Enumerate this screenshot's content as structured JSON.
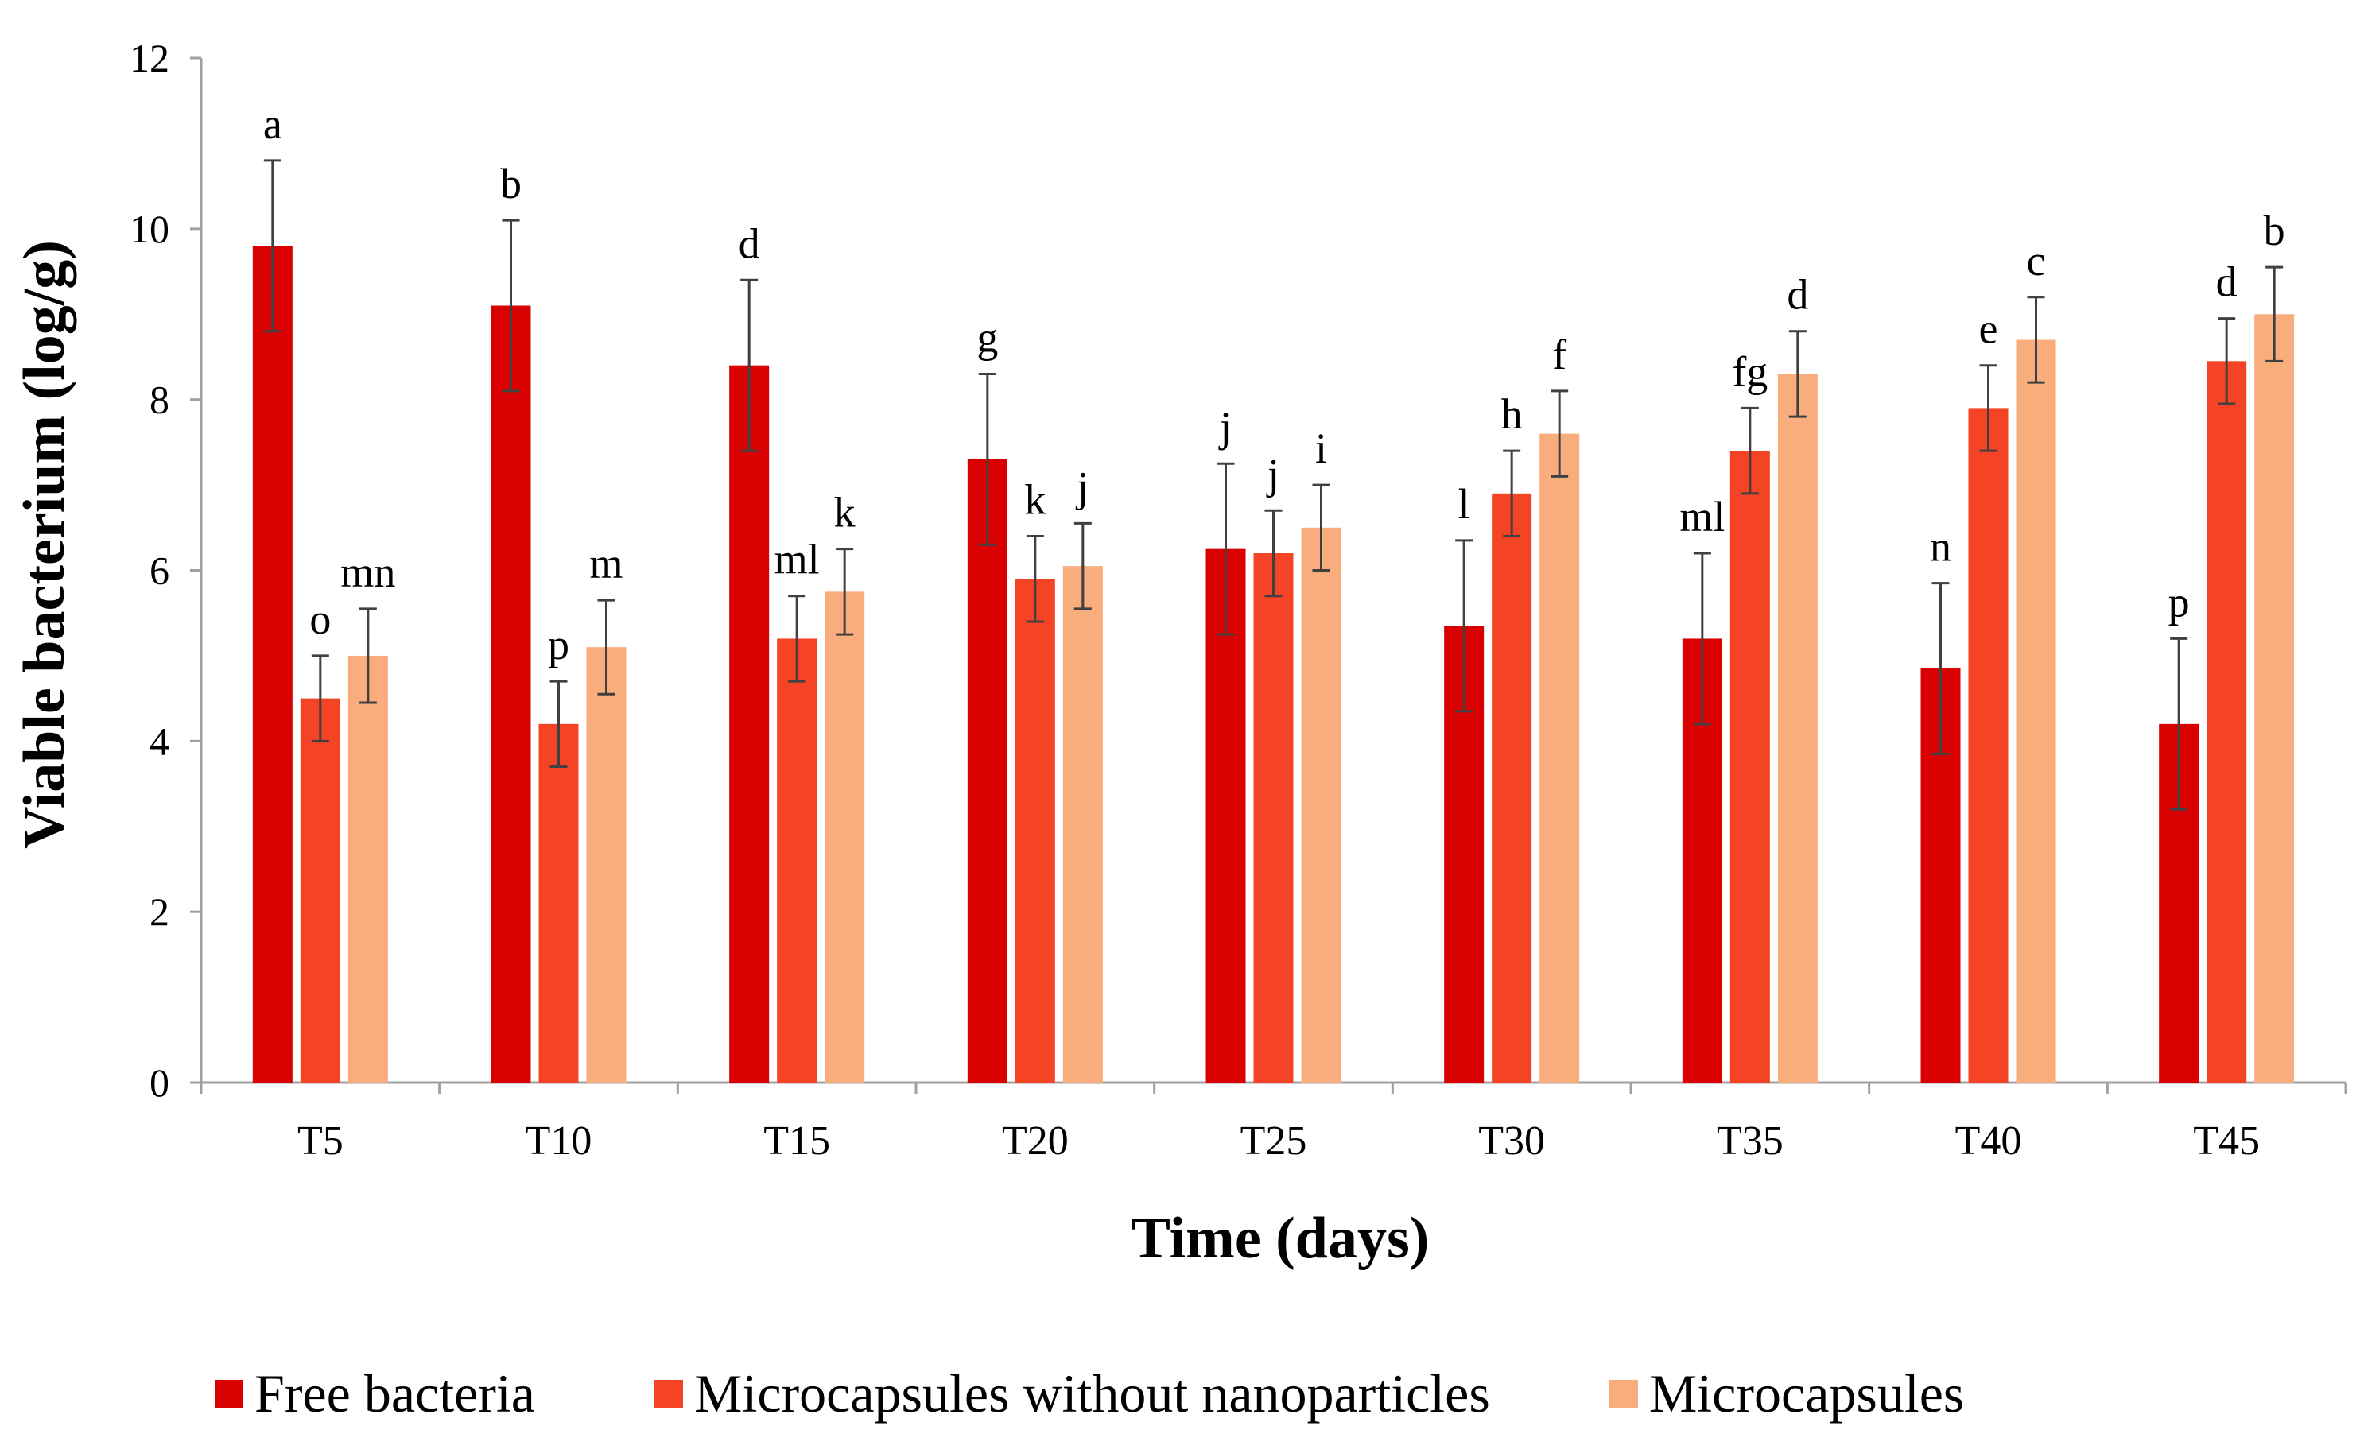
{
  "chart_data": {
    "type": "bar",
    "title": "",
    "xlabel": "Time (days)",
    "ylabel": "Viable bacterium (log/g)",
    "ylim": [
      0,
      12
    ],
    "yticks": [
      0,
      2,
      4,
      6,
      8,
      10,
      12
    ],
    "grid": false,
    "legend_position": "bottom",
    "categories": [
      "T5",
      "T10",
      "T15",
      "T20",
      "T25",
      "T30",
      "T35",
      "T40",
      "T45"
    ],
    "series": [
      {
        "name": "Free bacteria",
        "color": "#D80000",
        "values": [
          9.8,
          9.1,
          8.4,
          7.3,
          6.25,
          5.35,
          5.2,
          4.85,
          4.2
        ],
        "errors": [
          1.0,
          1.0,
          1.0,
          1.0,
          1.0,
          1.0,
          1.0,
          1.0,
          1.0
        ],
        "labels": [
          "a",
          "b",
          "d",
          "g",
          "j",
          "l",
          "ml",
          "n",
          "p"
        ]
      },
      {
        "name": "Microcapsules without nanoparticles",
        "color": "#F44325",
        "values": [
          4.5,
          4.2,
          5.2,
          5.9,
          6.2,
          6.9,
          7.4,
          7.9,
          8.45
        ],
        "errors": [
          0.5,
          0.5,
          0.5,
          0.5,
          0.5,
          0.5,
          0.5,
          0.5,
          0.5
        ],
        "labels": [
          "o",
          "p",
          "ml",
          "k",
          "j",
          "h",
          "fg",
          "e",
          "d"
        ]
      },
      {
        "name": "Microcapsules",
        "color": "#F9AD7D",
        "values": [
          5.0,
          5.1,
          5.75,
          6.05,
          6.5,
          7.6,
          8.3,
          8.7,
          9.0
        ],
        "errors": [
          0.55,
          0.55,
          0.5,
          0.5,
          0.5,
          0.5,
          0.5,
          0.5,
          0.55
        ],
        "labels": [
          "mn",
          "m",
          "k",
          "j",
          "i",
          "f",
          "d",
          "c",
          "b"
        ]
      }
    ]
  }
}
